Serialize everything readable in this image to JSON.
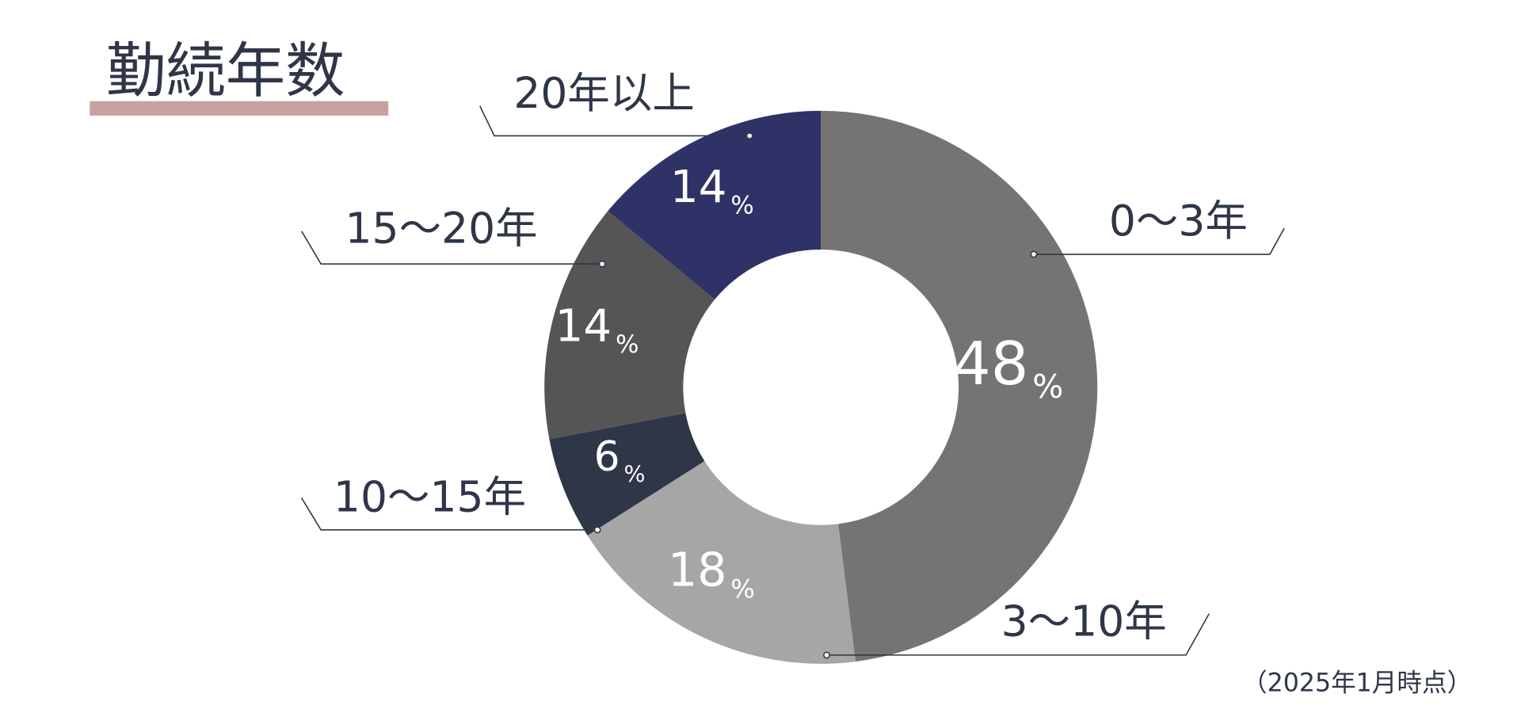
{
  "title": "勤続年数",
  "note": "（2025年1月時点）",
  "chart_data": {
    "type": "donut",
    "categories": [
      "0〜3年",
      "3〜10年",
      "10〜15年",
      "15〜20年",
      "20年以上"
    ],
    "values": [
      48,
      18,
      6,
      14,
      14
    ],
    "unit": "%",
    "colors": [
      "#757374",
      "#a6a6a6",
      "#2e3648",
      "#555555",
      "#2f3266"
    ]
  }
}
